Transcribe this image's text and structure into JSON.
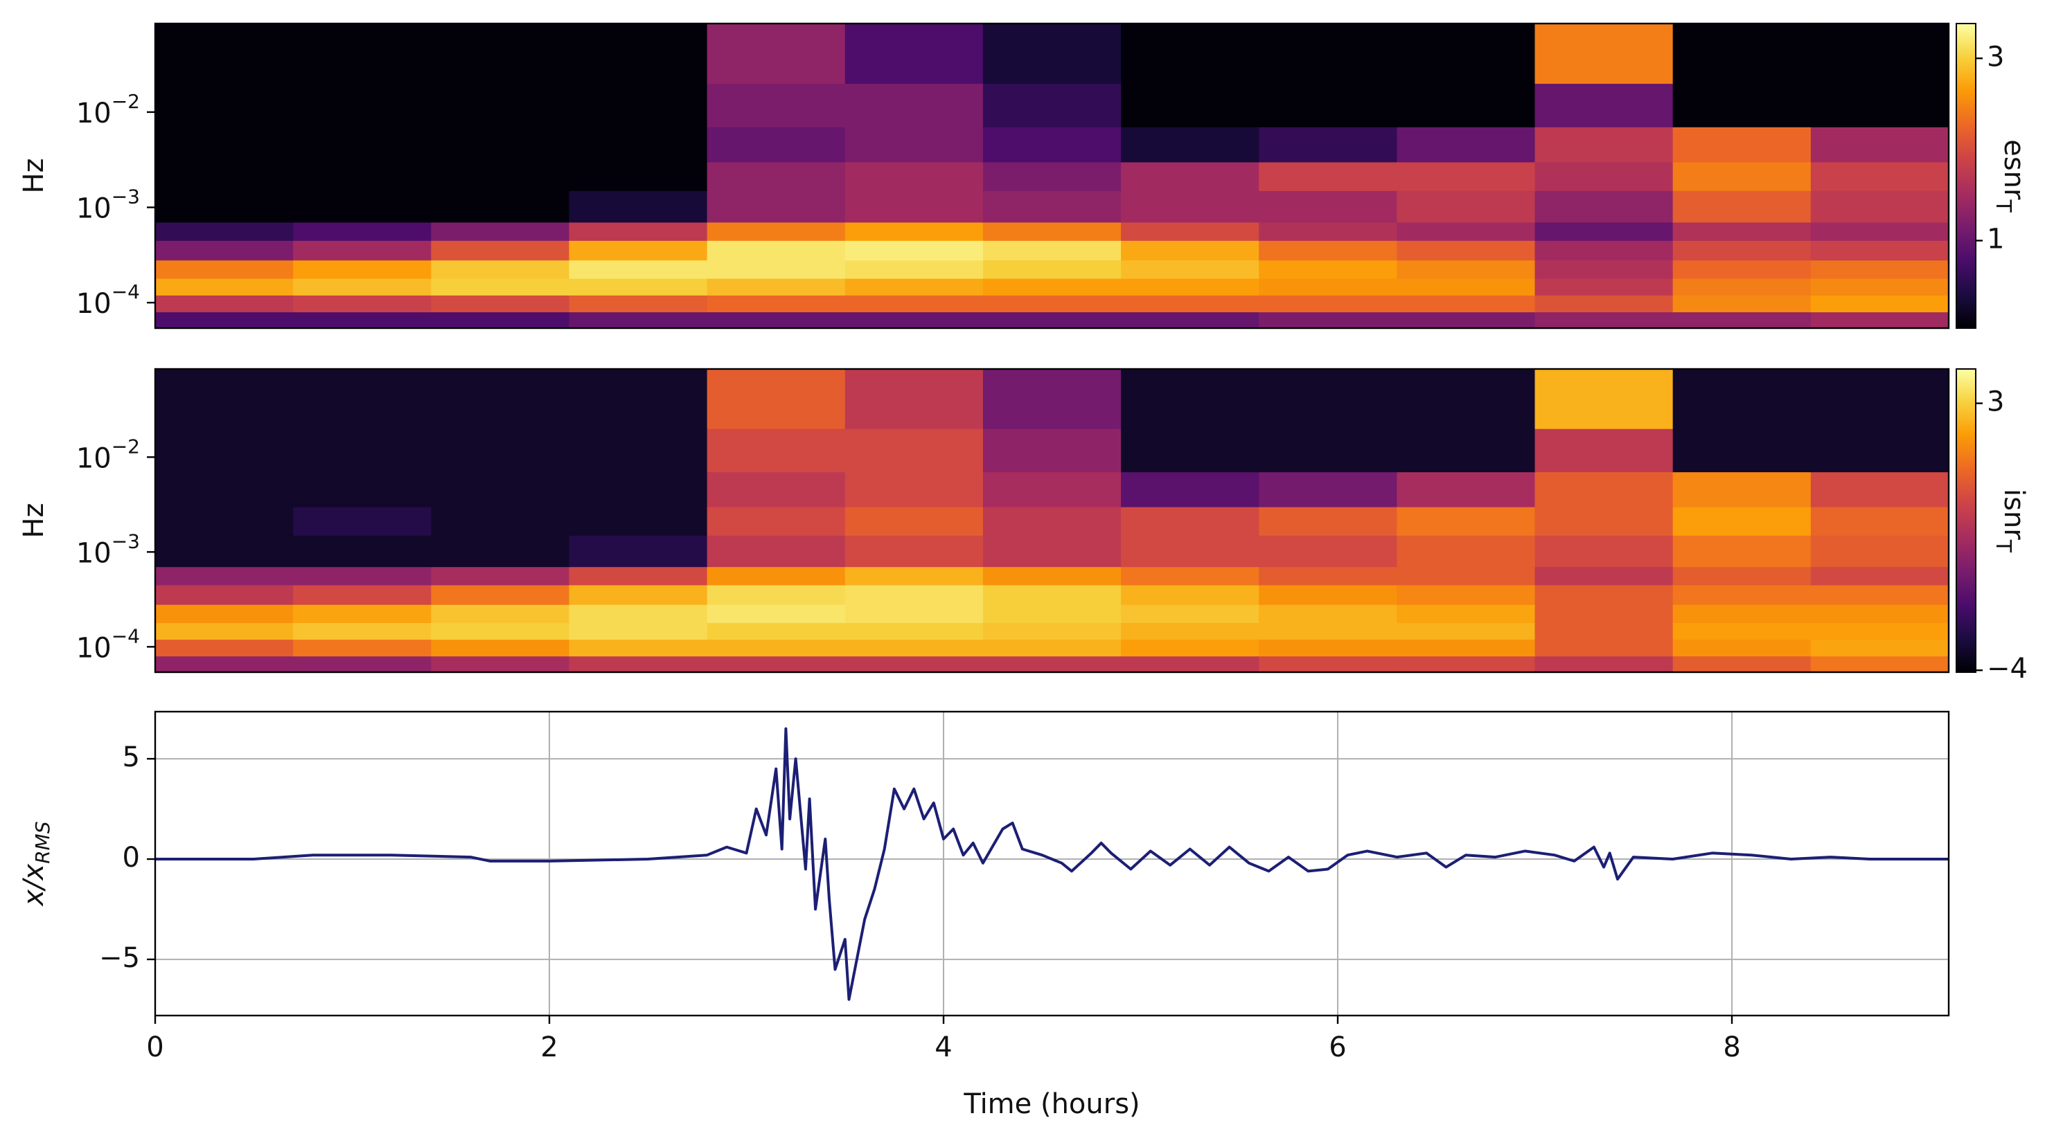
{
  "chart_data": [
    {
      "type": "heatmap",
      "ylabel": "Hz",
      "yscale": "log",
      "ylim": [
        5.4e-05,
        0.085
      ],
      "yticks": [
        {
          "value": 0.0001,
          "label": "10",
          "exponent": "−4"
        },
        {
          "value": 0.001,
          "label": "10",
          "exponent": "−3"
        },
        {
          "value": 0.01,
          "label": "10",
          "exponent": "−2"
        }
      ],
      "xlim": [
        0,
        9.1
      ],
      "colormap": "inferno",
      "time_bins": [
        0,
        0.7,
        1.4,
        2.1,
        2.8,
        3.5,
        4.2,
        4.9,
        5.6,
        6.3,
        7.0,
        7.7,
        8.4,
        9.1
      ],
      "freq_bins": [
        5.4e-05,
        8e-05,
        0.00012,
        0.00018,
        0.00028,
        0.00045,
        0.0007,
        0.0015,
        0.003,
        0.007,
        0.02,
        0.085
      ],
      "z": [
        [
          0.9,
          0.9,
          0.9,
          1.0,
          1.0,
          1.0,
          1.0,
          1.0,
          1.1,
          1.1,
          1.2,
          1.2,
          1.3
        ],
        [
          1.5,
          1.6,
          1.7,
          1.9,
          2.0,
          2.0,
          2.0,
          2.0,
          2.0,
          2.0,
          1.8,
          2.3,
          2.5
        ],
        [
          2.6,
          2.8,
          3.0,
          3.0,
          2.8,
          2.6,
          2.5,
          2.5,
          2.4,
          2.4,
          1.5,
          2.2,
          2.3
        ],
        [
          2.2,
          2.5,
          2.9,
          3.3,
          3.3,
          3.2,
          3.0,
          2.8,
          2.5,
          2.3,
          1.4,
          2.0,
          2.1
        ],
        [
          1.1,
          1.3,
          1.8,
          2.6,
          3.3,
          3.4,
          3.2,
          2.6,
          2.1,
          1.9,
          1.3,
          1.7,
          1.6
        ],
        [
          0.8,
          0.9,
          1.1,
          1.5,
          2.2,
          2.5,
          2.2,
          1.7,
          1.4,
          1.3,
          1.0,
          1.4,
          1.3
        ],
        [
          0.6,
          0.6,
          0.6,
          0.7,
          1.2,
          1.3,
          1.2,
          1.3,
          1.3,
          1.5,
          1.2,
          1.9,
          1.5
        ],
        [
          0.6,
          0.6,
          0.6,
          0.6,
          1.2,
          1.3,
          1.1,
          1.3,
          1.6,
          1.6,
          1.4,
          2.2,
          1.6
        ],
        [
          0.6,
          0.6,
          0.6,
          0.6,
          1.0,
          1.1,
          0.9,
          0.7,
          0.8,
          1.0,
          1.5,
          2.0,
          1.3
        ],
        [
          0.6,
          0.6,
          0.6,
          0.6,
          1.1,
          1.1,
          0.8,
          0.6,
          0.6,
          0.6,
          1.0,
          0.6,
          0.6
        ],
        [
          0.6,
          0.6,
          0.6,
          0.6,
          1.2,
          0.9,
          0.7,
          0.6,
          0.6,
          0.6,
          2.2,
          0.6,
          0.6
        ]
      ],
      "colorbar": {
        "label": "esnr",
        "label_sub": "T",
        "scale": "log",
        "clim": [
          0.59,
          3.7
        ],
        "ticks": [
          1,
          3
        ]
      }
    },
    {
      "type": "heatmap",
      "ylabel": "Hz",
      "yscale": "log",
      "ylim": [
        5.4e-05,
        0.085
      ],
      "yticks": [
        {
          "value": 0.0001,
          "label": "10",
          "exponent": "−4"
        },
        {
          "value": 0.001,
          "label": "10",
          "exponent": "−3"
        },
        {
          "value": 0.01,
          "label": "10",
          "exponent": "−2"
        }
      ],
      "xlim": [
        0,
        9.1
      ],
      "colormap": "inferno",
      "time_bins": [
        0,
        0.7,
        1.4,
        2.1,
        2.8,
        3.5,
        4.2,
        4.9,
        5.6,
        6.3,
        7.0,
        7.7,
        8.4,
        9.1
      ],
      "freq_bins": [
        5.4e-05,
        8e-05,
        0.00012,
        0.00018,
        0.00028,
        0.00045,
        0.0007,
        0.0015,
        0.003,
        0.007,
        0.02,
        0.085
      ],
      "z": [
        [
          -1,
          -1,
          -0.5,
          0,
          0,
          0,
          0,
          0,
          0.5,
          0.5,
          0,
          1,
          1.5
        ],
        [
          1,
          1.5,
          2,
          2.5,
          2.5,
          2.5,
          2.5,
          2.2,
          2,
          2,
          1,
          2,
          2.3
        ],
        [
          2.5,
          2.8,
          3,
          3.2,
          3,
          3,
          2.8,
          2.5,
          2.5,
          2.5,
          1,
          2.2,
          2.2
        ],
        [
          2,
          2.3,
          2.8,
          3.2,
          3.4,
          3.3,
          3,
          2.8,
          2.5,
          2.3,
          1,
          2,
          2
        ],
        [
          0,
          0.5,
          1.5,
          2.5,
          3.2,
          3.3,
          3,
          2.5,
          2,
          1.8,
          1,
          1.5,
          1.5
        ],
        [
          -1,
          -1,
          -0.5,
          0.5,
          2,
          2.5,
          2,
          1.5,
          1,
          1,
          0,
          1,
          0.5
        ],
        [
          -3.5,
          -3.5,
          -3.5,
          -3,
          0,
          0.5,
          0,
          0.5,
          0.5,
          1,
          0.5,
          1.5,
          1
        ],
        [
          -3.5,
          -3,
          -3.5,
          -3.5,
          0.5,
          1,
          0,
          0.5,
          1,
          1.5,
          1,
          2.2,
          1.2
        ],
        [
          -3.5,
          -3.5,
          -3.5,
          -3.5,
          0,
          0.5,
          -0.5,
          -2,
          -1.5,
          -0.5,
          1,
          1.8,
          0.5
        ],
        [
          -3.5,
          -3.5,
          -3.5,
          -3.5,
          0.5,
          0.5,
          -1,
          -3.5,
          -3.5,
          -3.5,
          0,
          -3.5,
          -3.5
        ],
        [
          -3.5,
          -3.5,
          -3.5,
          -3.5,
          1,
          0,
          -1.5,
          -3.5,
          -3.5,
          -3.5,
          2.5,
          -3.5,
          -3.5
        ]
      ],
      "colorbar": {
        "label": "isnr",
        "label_sub": "T",
        "scale": "linear",
        "clim": [
          -4.05,
          3.9
        ],
        "ticks": [
          3,
          {
            "value": -4,
            "label": "−4"
          }
        ]
      }
    },
    {
      "type": "line",
      "xlabel": "Time (hours)",
      "ylabel": "x/x",
      "ylabel_sub": "RMS",
      "xlim": [
        0,
        9.1
      ],
      "xticks": [
        0,
        2,
        4,
        6,
        8
      ],
      "ylim": [
        -7.8,
        7.35
      ],
      "yticks": [
        {
          "value": -5,
          "label": "−5"
        },
        0,
        5
      ],
      "grid": true,
      "color": "#1c1f74",
      "x": [
        0,
        0.5,
        0.8,
        1.2,
        1.6,
        1.7,
        2.0,
        2.5,
        2.8,
        2.9,
        3.0,
        3.05,
        3.1,
        3.15,
        3.18,
        3.2,
        3.22,
        3.25,
        3.3,
        3.32,
        3.35,
        3.4,
        3.42,
        3.45,
        3.5,
        3.52,
        3.55,
        3.6,
        3.65,
        3.7,
        3.75,
        3.8,
        3.85,
        3.9,
        3.95,
        4.0,
        4.05,
        4.1,
        4.15,
        4.2,
        4.3,
        4.35,
        4.4,
        4.5,
        4.6,
        4.65,
        4.75,
        4.8,
        4.85,
        4.95,
        5.05,
        5.15,
        5.25,
        5.35,
        5.45,
        5.55,
        5.65,
        5.75,
        5.85,
        5.95,
        6.05,
        6.15,
        6.3,
        6.45,
        6.55,
        6.65,
        6.8,
        6.95,
        7.1,
        7.2,
        7.3,
        7.35,
        7.38,
        7.42,
        7.5,
        7.7,
        7.9,
        8.1,
        8.3,
        8.5,
        8.7,
        9.1
      ],
      "values": [
        0,
        0,
        0.2,
        0.2,
        0.1,
        -0.1,
        -0.1,
        0,
        0.2,
        0.6,
        0.3,
        2.5,
        1.2,
        4.5,
        0.5,
        6.5,
        2,
        5,
        -0.5,
        3,
        -2.5,
        1,
        -2,
        -5.5,
        -4,
        -7,
        -5.5,
        -3,
        -1.5,
        0.5,
        3.5,
        2.5,
        3.5,
        2,
        2.8,
        1,
        1.5,
        0.2,
        0.8,
        -0.2,
        1.5,
        1.8,
        0.5,
        0.2,
        -0.2,
        -0.6,
        0.3,
        0.8,
        0.3,
        -0.5,
        0.4,
        -0.3,
        0.5,
        -0.3,
        0.6,
        -0.2,
        -0.6,
        0.1,
        -0.6,
        -0.5,
        0.2,
        0.4,
        0.1,
        0.3,
        -0.4,
        0.2,
        0.1,
        0.4,
        0.2,
        -0.1,
        0.6,
        -0.4,
        0.3,
        -1,
        0.1,
        0,
        0.3,
        0.2,
        0,
        0.1,
        0,
        0
      ]
    }
  ]
}
